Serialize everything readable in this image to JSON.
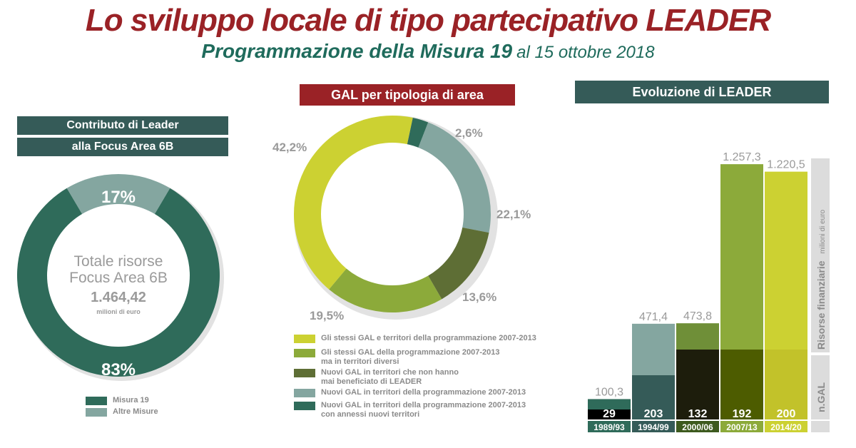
{
  "header": {
    "title": "Lo sviluppo locale di tipo partecipativo LEADER",
    "subtitle": "Programmazione della Misura 19",
    "subtitle_date": "al 15 ottobre 2018"
  },
  "left_panel": {
    "banner_line1": "Contributo di Leader",
    "banner_line2": "alla Focus Area 6B",
    "center_line1": "Totale risorse",
    "center_line2": "Focus Area 6B",
    "center_value": "1.464,42",
    "center_unit": "milioni di euro",
    "legend": [
      {
        "label": "Misura 19",
        "color": "#2f6b5a"
      },
      {
        "label": "Altre Misure",
        "color": "#84a6a0"
      }
    ]
  },
  "middle_panel": {
    "banner": "GAL per tipologia di area",
    "legend": [
      {
        "label_lines": [
          "Gli stessi GAL e territori della programmazione 2007-2013"
        ],
        "color": "#ccd132"
      },
      {
        "label_lines": [
          "Gli stessi GAL della programmazione 2007-2013",
          "ma in territori diversi"
        ],
        "color": "#8caa3a"
      },
      {
        "label_lines": [
          "Nuovi GAL in territori che non hanno",
          "mai beneficiato di LEADER"
        ],
        "color": "#5e6e35"
      },
      {
        "label_lines": [
          "Nuovi GAL in territori della programmazione 2007-2013"
        ],
        "color": "#84a6a0"
      },
      {
        "label_lines": [
          "Nuovi GAL in territori della programmazione 2007-2013",
          "con annessi nuovi territori"
        ],
        "color": "#2f6b5a"
      }
    ]
  },
  "right_panel": {
    "banner": "Evoluzione di LEADER",
    "side_label_resources": "Risorse finanziarie",
    "side_label_unit": "milioni di euro",
    "side_label_gal": "n.GAL"
  },
  "chart_data": [
    {
      "type": "pie",
      "title": "",
      "labels": [
        "Misura 19",
        "Altre Misure"
      ],
      "values": [
        83,
        17
      ],
      "value_labels": [
        "83%",
        "17%"
      ],
      "colors": [
        "#2f6b5a",
        "#84a6a0"
      ]
    },
    {
      "type": "pie",
      "title": "",
      "labels": [
        "Gli stessi GAL e territori della programmazione 2007-2013",
        "Gli stessi GAL della programmazione 2007-2013 ma in territori diversi",
        "Nuovi GAL in territori che non hanno mai beneficiato di LEADER",
        "Nuovi GAL in territori della programmazione 2007-2013",
        "Nuovi GAL in territori della programmazione 2007-2013 con annessi nuovi territori"
      ],
      "values": [
        42.2,
        19.5,
        13.6,
        22.1,
        2.6
      ],
      "value_labels": [
        "42,2%",
        "19,5%",
        "13,6%",
        "22,1%",
        "2,6%"
      ],
      "colors": [
        "#ccd132",
        "#8caa3a",
        "#5e6e35",
        "#84a6a0",
        "#2f6b5a"
      ]
    },
    {
      "type": "bar",
      "title": "",
      "categories": [
        "1989/93",
        "1994/99",
        "2000/06",
        "2007/13",
        "2014/20"
      ],
      "series": [
        {
          "name": "Risorse finanziarie",
          "values": [
            100.3,
            471.4,
            473.8,
            1257.3,
            1220.5
          ],
          "value_labels": [
            "100,3",
            "471,4",
            "473,8",
            "1.257,3",
            "1.220,5"
          ]
        },
        {
          "name": "n.GAL",
          "values": [
            29,
            203,
            132,
            192,
            200
          ]
        }
      ],
      "ylim": [
        0,
        1300
      ],
      "colors_top": [
        "#2f6b5a",
        "#84a6a0",
        "#6f8f38",
        "#8caa3a",
        "#ccd132"
      ],
      "colors_bottom": [
        "#000000",
        "#355b58",
        "#1d1d0c",
        "#4d5c00",
        "#c2c22a"
      ],
      "colors_label": [
        "#2f6b5a",
        "#355b58",
        "#3d5a1e",
        "#8caa3a",
        "#ccd132"
      ]
    }
  ]
}
